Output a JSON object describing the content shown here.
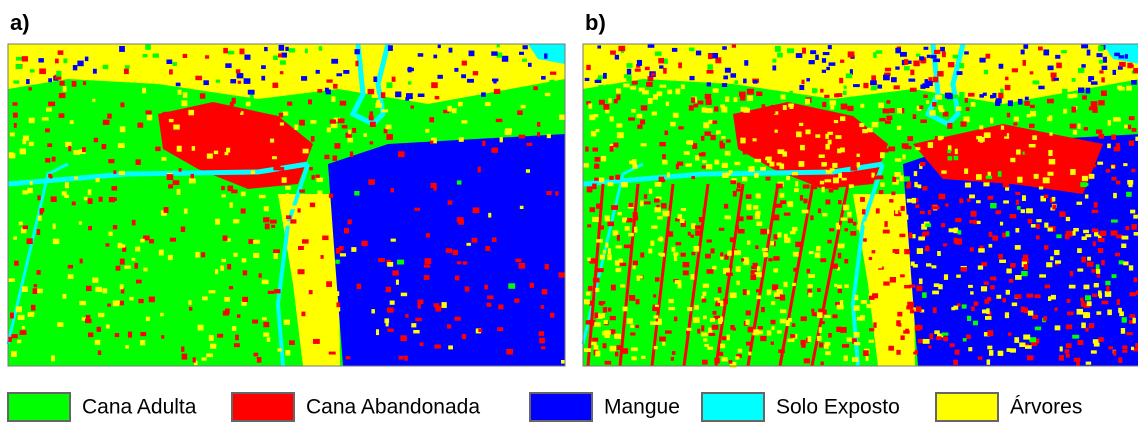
{
  "panels": [
    {
      "label": "a)"
    },
    {
      "label": "b)"
    }
  ],
  "legend": [
    {
      "label": "Cana Adulta",
      "color": "#00ff00"
    },
    {
      "label": "Cana Abandonada",
      "color": "#ff0000"
    },
    {
      "label": "Mangue",
      "color": "#0000ff"
    },
    {
      "label": "Solo Exposto",
      "color": "#00ffff"
    },
    {
      "label": "Árvores",
      "color": "#ffff00"
    }
  ]
}
